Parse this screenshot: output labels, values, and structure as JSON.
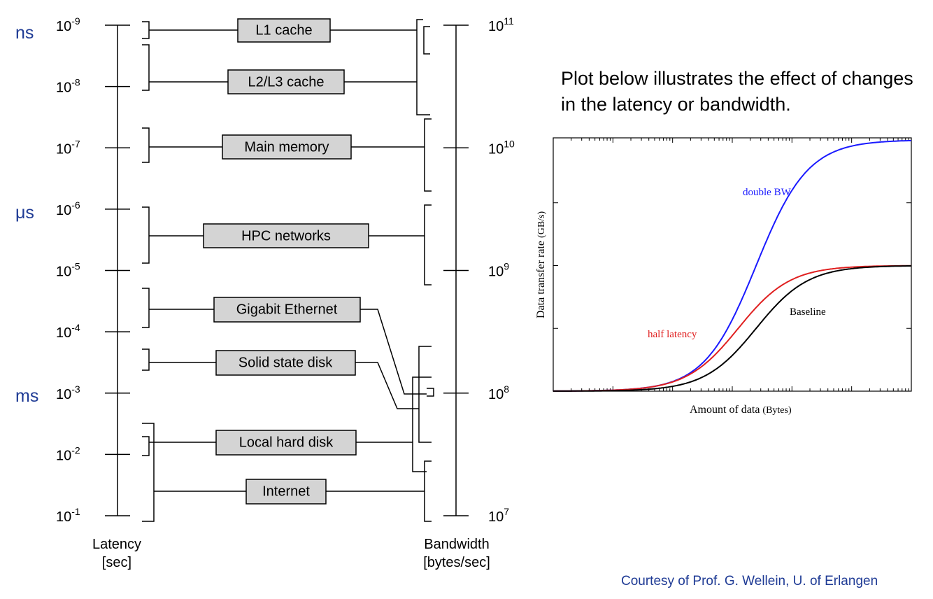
{
  "diagram": {
    "latency_units": {
      "ns": "ns",
      "us": "μs",
      "ms": "ms"
    },
    "latency_ticks": [
      "10-9",
      "10-8",
      "10-7",
      "10-6",
      "10-5",
      "10-4",
      "10-3",
      "10-2",
      "10-1"
    ],
    "latency_ticks_parts": [
      {
        "base": "10",
        "exp": "-9"
      },
      {
        "base": "10",
        "exp": "-8"
      },
      {
        "base": "10",
        "exp": "-7"
      },
      {
        "base": "10",
        "exp": "-6"
      },
      {
        "base": "10",
        "exp": "-5"
      },
      {
        "base": "10",
        "exp": "-4"
      },
      {
        "base": "10",
        "exp": "-3"
      },
      {
        "base": "10",
        "exp": "-2"
      },
      {
        "base": "10",
        "exp": "-1"
      }
    ],
    "bandwidth_ticks_parts": [
      {
        "base": "10",
        "exp": "11"
      },
      {
        "base": "10",
        "exp": "10"
      },
      {
        "base": "10",
        "exp": "9"
      },
      {
        "base": "10",
        "exp": "8"
      },
      {
        "base": "10",
        "exp": "7"
      }
    ],
    "components": [
      "L1 cache",
      "L2/L3 cache",
      "Main memory",
      "HPC networks",
      "Gigabit Ethernet",
      "Solid state disk",
      "Local hard disk",
      "Internet"
    ],
    "latency_title": "Latency",
    "latency_unit": "[sec]",
    "bandwidth_title": "Bandwidth",
    "bandwidth_unit": "[bytes/sec]"
  },
  "description": "Plot below illustrates the effect of changes in the latency or bandwidth.",
  "chart_data": {
    "type": "line",
    "title": "",
    "xlabel": "Amount of data",
    "xlabel_unit": "(Bytes)",
    "ylabel": "Data transfer rate",
    "ylabel_unit": "(GB/s)",
    "x_scale": "log",
    "series": [
      {
        "name": "Baseline",
        "color": "#000000",
        "plateau": 1.0,
        "half_point_decade": 3.4
      },
      {
        "name": "half latency",
        "color": "#e02020",
        "plateau": 1.0,
        "half_point_decade": 3.1
      },
      {
        "name": "double BW",
        "color": "#1a1aff",
        "plateau": 2.0,
        "half_point_decade": 3.4
      }
    ]
  },
  "credit": "Courtesy of Prof. G. Wellein, U. of Erlangen"
}
